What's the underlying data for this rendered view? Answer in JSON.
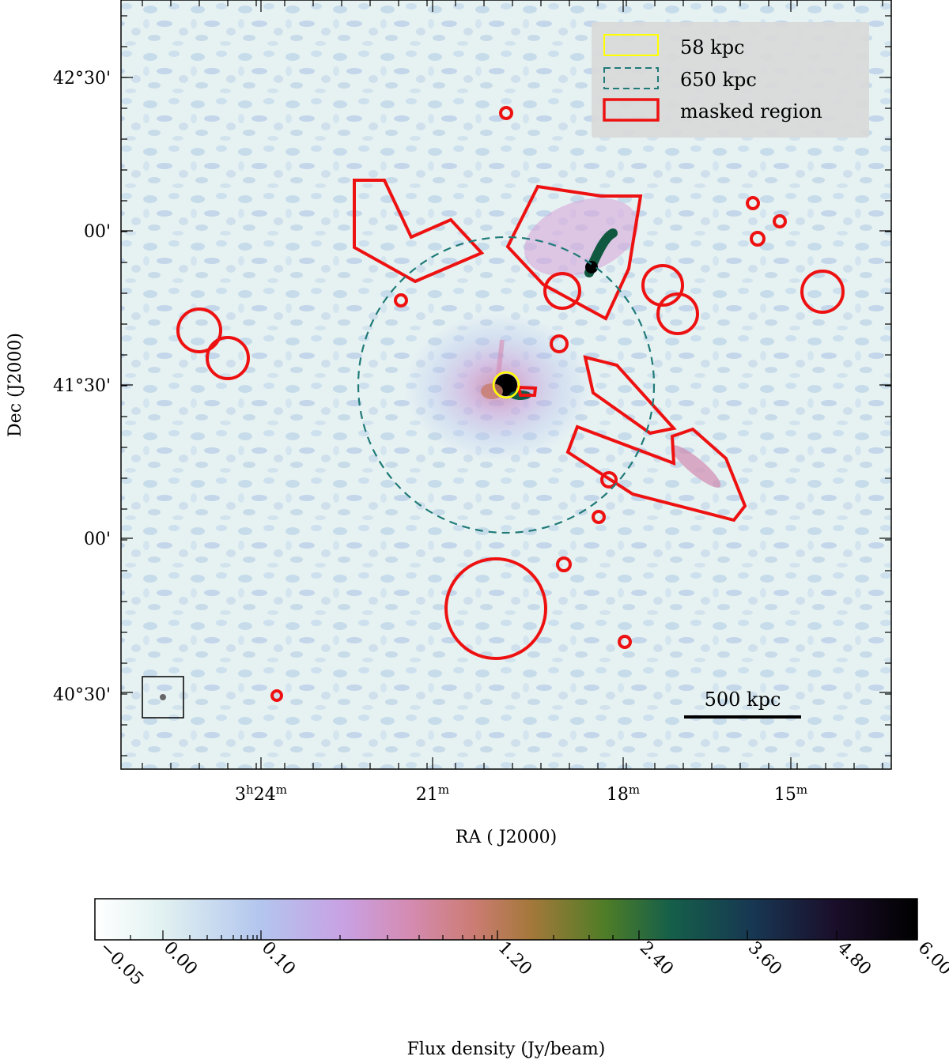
{
  "figure": {
    "x_axis_title": "RA ( J2000)",
    "y_axis_title": "Dec (J2000)",
    "ra_ticks": [
      {
        "main": "3",
        "sup1": "h",
        "mid": "24",
        "sup2": "m"
      },
      {
        "main": "",
        "sup1": "",
        "mid": "21",
        "sup2": "m"
      },
      {
        "main": "",
        "sup1": "",
        "mid": "18",
        "sup2": "m"
      },
      {
        "main": "",
        "sup1": "",
        "mid": "15",
        "sup2": "m"
      }
    ],
    "dec_ticks": [
      "42°30'",
      "00'",
      "41°30'",
      "00'",
      "40°30'"
    ],
    "scalebar_label": "500 kpc",
    "legend": [
      {
        "label": "58 kpc",
        "color": "#ffff00",
        "style": "solid"
      },
      {
        "label": "650 kpc",
        "color": "#1f7a78",
        "style": "dashed"
      },
      {
        "label": "masked region",
        "color": "#ee1111",
        "style": "solid"
      }
    ],
    "colors": {
      "map_bg": "#e4f1f1",
      "mask": "#ee1111",
      "inner_circle": "#ffff00",
      "outer_circle": "#1f7a78"
    }
  },
  "colorbar": {
    "title": "Flux density (Jy/beam)",
    "tick_labels": [
      "−0.05",
      "0.00",
      "0.10",
      "1.20",
      "2.40",
      "3.60",
      "4.80",
      "6.00"
    ],
    "range": [
      -0.05,
      6.0
    ],
    "colormap_stops": [
      "#ffffff",
      "#d6ecec",
      "#b6c4ef",
      "#c9a0e3",
      "#d28ab0",
      "#c87c6a",
      "#9a7a33",
      "#4d7a28",
      "#135a48",
      "#15304f",
      "#170b22",
      "#000000"
    ]
  }
}
